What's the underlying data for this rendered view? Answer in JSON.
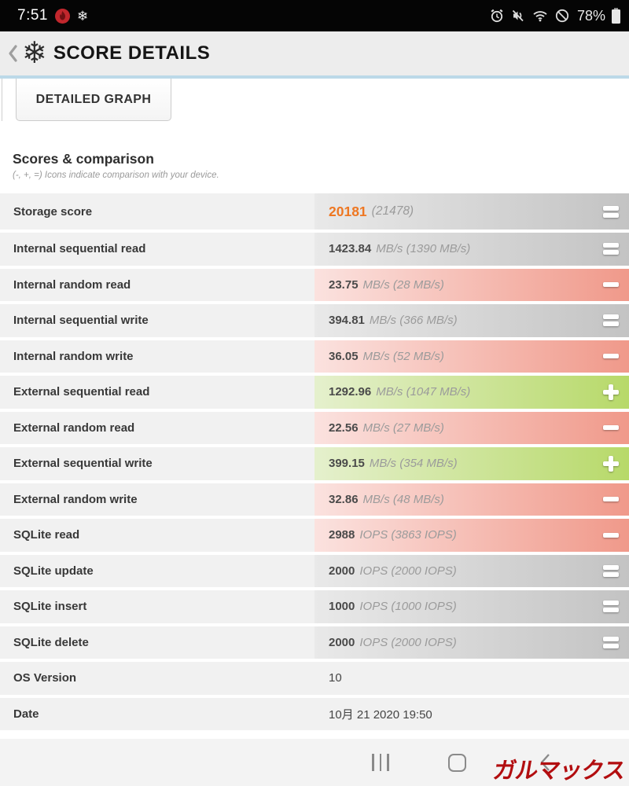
{
  "status_bar": {
    "time": "7:51",
    "battery_percent": "78%",
    "icons_left": [
      "flame-notification-icon",
      "snowflake-notification-icon"
    ],
    "icons_right": [
      "alarm-icon",
      "vibrate-mute-icon",
      "wifi-icon",
      "do-not-disturb-icon",
      "battery-icon"
    ],
    "snowflake_glyph": "❄"
  },
  "header": {
    "title": "SCORE DETAILS",
    "logo_glyph": "❄"
  },
  "tabs": {
    "detailed_graph": "DETAILED GRAPH"
  },
  "section": {
    "title": "Scores & comparison",
    "subtitle": "(-, +, =) Icons indicate comparison with your device."
  },
  "table": {
    "rows": [
      {
        "label": "Storage score",
        "value": "20181",
        "detail": "(21478)",
        "comparison": "equal",
        "tone": "neutral",
        "accent": true
      },
      {
        "label": "Internal sequential read",
        "value": "1423.84",
        "detail": "MB/s (1390 MB/s)",
        "comparison": "equal",
        "tone": "neutral"
      },
      {
        "label": "Internal random read",
        "value": "23.75",
        "detail": "MB/s (28 MB/s)",
        "comparison": "minus",
        "tone": "worse"
      },
      {
        "label": "Internal sequential write",
        "value": "394.81",
        "detail": "MB/s (366 MB/s)",
        "comparison": "equal",
        "tone": "neutral"
      },
      {
        "label": "Internal random write",
        "value": "36.05",
        "detail": "MB/s (52 MB/s)",
        "comparison": "minus",
        "tone": "worse"
      },
      {
        "label": "External sequential read",
        "value": "1292.96",
        "detail": "MB/s (1047 MB/s)",
        "comparison": "plus",
        "tone": "better"
      },
      {
        "label": "External random read",
        "value": "22.56",
        "detail": "MB/s (27 MB/s)",
        "comparison": "minus",
        "tone": "worse"
      },
      {
        "label": "External sequential write",
        "value": "399.15",
        "detail": "MB/s (354 MB/s)",
        "comparison": "plus",
        "tone": "better"
      },
      {
        "label": "External random write",
        "value": "32.86",
        "detail": "MB/s (48 MB/s)",
        "comparison": "minus",
        "tone": "worse"
      },
      {
        "label": "SQLite read",
        "value": "2988",
        "detail": "IOPS (3863 IOPS)",
        "comparison": "minus",
        "tone": "worse"
      },
      {
        "label": "SQLite update",
        "value": "2000",
        "detail": "IOPS (2000 IOPS)",
        "comparison": "equal",
        "tone": "neutral"
      },
      {
        "label": "SQLite insert",
        "value": "1000",
        "detail": "IOPS (1000 IOPS)",
        "comparison": "equal",
        "tone": "neutral"
      },
      {
        "label": "SQLite delete",
        "value": "2000",
        "detail": "IOPS (2000 IOPS)",
        "comparison": "equal",
        "tone": "neutral"
      },
      {
        "label": "OS Version",
        "value": "10",
        "detail": "",
        "comparison": "none",
        "tone": "plain"
      },
      {
        "label": "Date",
        "value": "10月 21 2020 19:50",
        "detail": "",
        "comparison": "none",
        "tone": "plain"
      }
    ]
  },
  "nav_bar": {
    "icons": [
      "recents-icon",
      "home-icon",
      "back-icon"
    ]
  },
  "watermark": {
    "text": "ガルマックス"
  },
  "colors": {
    "accent_orange": "#ee7722",
    "better_green_end": "#b7d969",
    "worse_pink_end": "#f0998a",
    "neutral_gray_end": "#c3c3c3",
    "row_label_bg": "#f1f1f1",
    "header_bg": "#ededed",
    "header_divider_blue": "#bcd9e8",
    "status_bar_bg": "#050505",
    "watermark_red": "#b20d0f",
    "flame_badge_red": "#c1272d"
  }
}
